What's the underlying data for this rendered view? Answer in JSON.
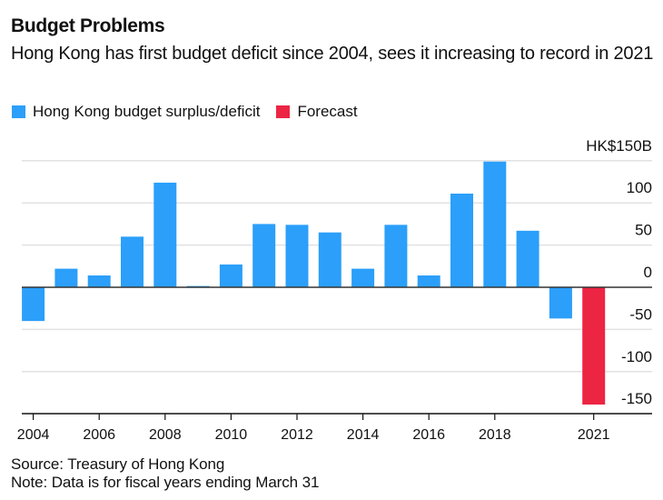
{
  "header": {
    "title": "Budget Problems",
    "subtitle": "Hong Kong has first budget deficit since 2004, sees it increasing to record in 2021"
  },
  "legend": [
    {
      "label": "Hong Kong budget surplus/deficit",
      "color": "#2b9ffa"
    },
    {
      "label": "Forecast",
      "color": "#ec2543"
    }
  ],
  "footer": {
    "source": "Source: Treasury of Hong Kong",
    "note": "Note: Data is for fiscal years ending March 31"
  },
  "chart_data": {
    "type": "bar",
    "title": "Budget Problems",
    "subtitle": "Hong Kong has first budget deficit since 2004, sees it increasing to record in 2021",
    "xlabel": "",
    "ylabel": "HK$ billions",
    "unit_label": "HK$150B",
    "categories": [
      2004,
      2005,
      2006,
      2007,
      2008,
      2009,
      2010,
      2011,
      2012,
      2013,
      2014,
      2015,
      2016,
      2017,
      2018,
      2019,
      2020,
      2021
    ],
    "series": [
      {
        "name": "Hong Kong budget surplus/deficit",
        "color": "#2b9ffa",
        "values": [
          -40,
          22,
          14,
          60,
          124,
          1.5,
          27,
          75,
          74,
          65,
          22,
          74,
          14,
          111,
          149,
          67,
          -37,
          null
        ]
      },
      {
        "name": "Forecast",
        "color": "#ec2543",
        "values": [
          null,
          null,
          null,
          null,
          null,
          null,
          null,
          null,
          null,
          null,
          null,
          null,
          null,
          null,
          null,
          null,
          null,
          -139
        ]
      }
    ],
    "x_ticks": [
      {
        "year": 2004,
        "label": "2004"
      },
      {
        "year": 2006,
        "label": "2006"
      },
      {
        "year": 2008,
        "label": "2008"
      },
      {
        "year": 2010,
        "label": "2010"
      },
      {
        "year": 2012,
        "label": "2012"
      },
      {
        "year": 2014,
        "label": "2014"
      },
      {
        "year": 2016,
        "label": "2016"
      },
      {
        "year": 2018,
        "label": "2018"
      },
      {
        "year": 2021,
        "label": "2021"
      }
    ],
    "y_ticks": [
      {
        "value": 150,
        "label": "HK$150B"
      },
      {
        "value": 100,
        "label": "100"
      },
      {
        "value": 50,
        "label": "50"
      },
      {
        "value": 0,
        "label": "0"
      },
      {
        "value": -50,
        "label": "-50"
      },
      {
        "value": -100,
        "label": "-100"
      },
      {
        "value": -150,
        "label": "-150"
      }
    ],
    "ylim": [
      -150,
      150
    ],
    "xlim": [
      2004,
      2022
    ],
    "grid": true,
    "y_axis_position": "right",
    "legend_position": "top-left"
  }
}
